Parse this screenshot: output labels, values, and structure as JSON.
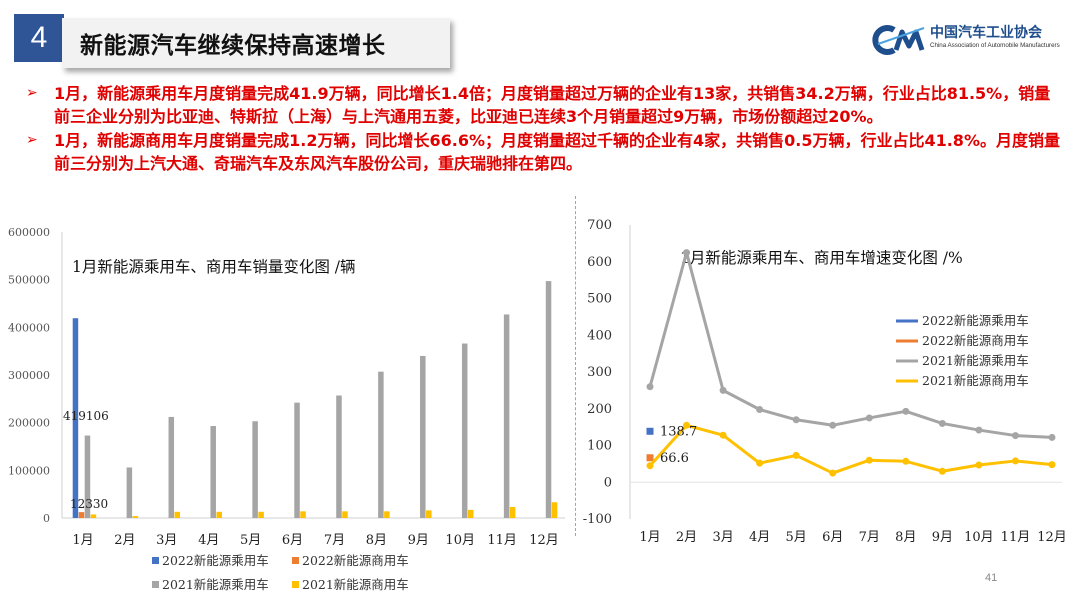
{
  "slide": {
    "number": "4",
    "title": "新能源汽车继续保持高速增长",
    "logo_cn": "中国汽车工业协会",
    "logo_en": "China Association of Automobile Manufacturers",
    "page_number": "41"
  },
  "bullets": [
    "1月，新能源乘用车月度销量完成41.9万辆，同比增长1.4倍；月度销量超过万辆的企业有13家，共销售34.2万辆，行业占比81.5%，销量前三企业分别为比亚迪、特斯拉（上海）与上汽通用五菱，比亚迪已连续3个月销量超过9万辆，市场份额超过20%。",
    "1月，新能源商用车月度销量完成1.2万辆，同比增长66.6%；月度销量超过千辆的企业有4家，共销售0.5万辆，行业占比41.8%。月度销量前三分别为上汽大通、奇瑞汽车及东风汽车股份公司，重庆瑞驰排在第四。"
  ],
  "colors": {
    "series_2022_passenger": "#4472c4",
    "series_2022_commercial": "#ed7d31",
    "series_2021_passenger": "#a5a5a5",
    "series_2021_commercial": "#ffc000",
    "accent": "#2f5597",
    "bullet_text": "#e00000"
  },
  "chart_data": [
    {
      "type": "bar",
      "title": "1月新能源乘用车、商用车销量变化图 /辆",
      "categories": [
        "1月",
        "2月",
        "3月",
        "4月",
        "5月",
        "6月",
        "7月",
        "8月",
        "9月",
        "10月",
        "11月",
        "12月"
      ],
      "ylim": [
        0,
        600000
      ],
      "yticks": [
        "0",
        "100000",
        "200000",
        "300000",
        "400000",
        "500000",
        "600000"
      ],
      "series": [
        {
          "name": "2022新能源乘用车",
          "values": [
            419106,
            null,
            null,
            null,
            null,
            null,
            null,
            null,
            null,
            null,
            null,
            null
          ]
        },
        {
          "name": "2022新能源商用车",
          "values": [
            12330,
            null,
            null,
            null,
            null,
            null,
            null,
            null,
            null,
            null,
            null,
            null
          ]
        },
        {
          "name": "2021新能源乘用车",
          "values": [
            173000,
            106000,
            212000,
            193000,
            203000,
            242000,
            257000,
            307000,
            340000,
            366000,
            427000,
            497000
          ]
        },
        {
          "name": "2021新能源商用车",
          "values": [
            7400,
            4000,
            13000,
            13000,
            13000,
            14000,
            14000,
            14000,
            16000,
            17000,
            23000,
            33000
          ]
        }
      ],
      "data_labels": [
        "419106",
        "12330"
      ],
      "legend": "bottom",
      "grid": false
    },
    {
      "type": "line",
      "title": "1月新能源乘用车、商用车增速变化图 /%",
      "categories": [
        "1月",
        "2月",
        "3月",
        "4月",
        "5月",
        "6月",
        "7月",
        "8月",
        "9月",
        "10月",
        "11月",
        "12月"
      ],
      "ylim": [
        -100,
        700
      ],
      "yticks": [
        "-100",
        "0",
        "100",
        "200",
        "300",
        "400",
        "500",
        "600",
        "700"
      ],
      "series": [
        {
          "name": "2022新能源乘用车",
          "values": [
            138.7,
            null,
            null,
            null,
            null,
            null,
            null,
            null,
            null,
            null,
            null,
            null
          ]
        },
        {
          "name": "2022新能源商用车",
          "values": [
            66.6,
            null,
            null,
            null,
            null,
            null,
            null,
            null,
            null,
            null,
            null,
            null
          ]
        },
        {
          "name": "2021新能源乘用车",
          "values": [
            260,
            625,
            250,
            198,
            170,
            155,
            175,
            193,
            160,
            142,
            127,
            122
          ]
        },
        {
          "name": "2021新能源商用车",
          "values": [
            45,
            155,
            128,
            52,
            73,
            25,
            60,
            57,
            30,
            47,
            58,
            48
          ]
        }
      ],
      "data_labels": [
        "138.7",
        "66.6"
      ],
      "legend": "right",
      "grid": false
    }
  ]
}
